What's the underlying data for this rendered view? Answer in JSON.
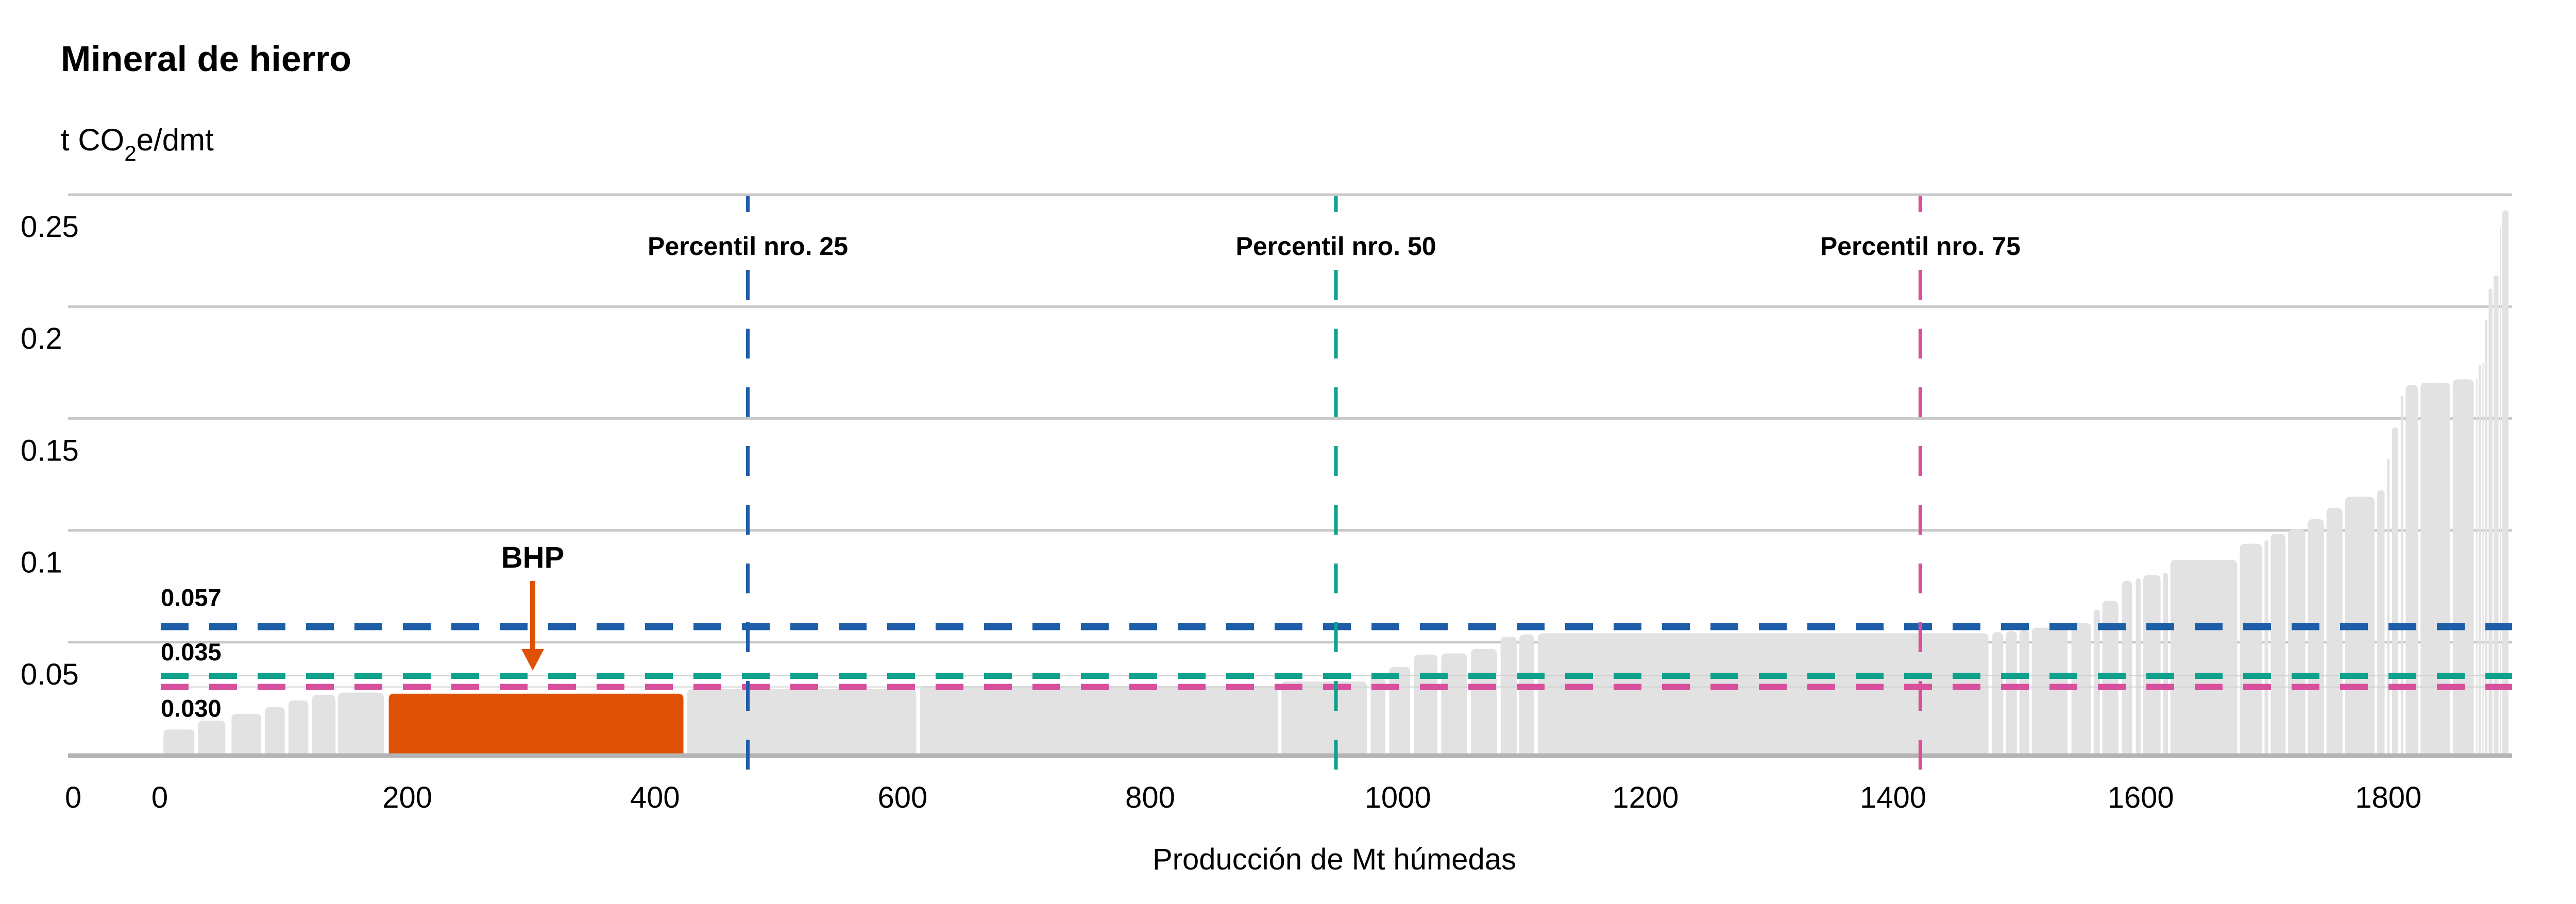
{
  "header": {
    "title": "Mineral de hierro",
    "y_unit_pre": "t CO",
    "y_unit_sub": "2",
    "y_unit_post": "e/dmt"
  },
  "colors": {
    "title_orange": "#e8650f",
    "highlight_orange": "#df5206",
    "bar_gray": "#e2e2e2",
    "gridline_gray": "#c8c8c8",
    "axis_gray": "#b4b4b4",
    "percentile25_blue": "#1e5ea8",
    "percentile50_teal": "#0ea18c",
    "percentile75_pink": "#d84f9d"
  },
  "chart_data": {
    "type": "bar",
    "title": "Mineral de hierro",
    "ylabel": "t CO2e/dmt",
    "xlabel": "Producción de Mt húmedas",
    "xlim": [
      0,
      1900
    ],
    "ylim": [
      0,
      0.25
    ],
    "grid": "horizontal",
    "legend": "none",
    "x_ticks": [
      0,
      200,
      400,
      600,
      800,
      1000,
      1200,
      1400,
      1600,
      1800
    ],
    "y_ticks": [
      {
        "value": 0,
        "label": "0"
      },
      {
        "value": 0.05,
        "label": "0.05"
      },
      {
        "value": 0.1,
        "label": "0.1"
      },
      {
        "value": 0.15,
        "label": "0.15"
      },
      {
        "value": 0.2,
        "label": "0.2"
      },
      {
        "value": 0.25,
        "label": "0.25"
      }
    ],
    "segments_format": [
      "x0_Mt",
      "x1_Mt",
      "t_CO2e_per_dmt"
    ],
    "segments": [
      [
        3,
        28,
        0.011
      ],
      [
        31,
        53,
        0.015
      ],
      [
        58,
        82,
        0.018
      ],
      [
        85,
        101,
        0.021
      ],
      [
        104,
        120,
        0.024
      ],
      [
        123,
        142,
        0.0265
      ],
      [
        144,
        181,
        0.0275
      ],
      [
        426,
        611,
        0.029
      ],
      [
        614,
        903,
        0.0305
      ],
      [
        906,
        975,
        0.0325
      ],
      [
        978,
        990,
        0.035
      ],
      [
        993,
        1010,
        0.039
      ],
      [
        1013,
        1032,
        0.0445
      ],
      [
        1035,
        1056,
        0.045
      ],
      [
        1059,
        1080,
        0.047
      ],
      [
        1083,
        1096,
        0.0525
      ],
      [
        1098,
        1110,
        0.0535
      ],
      [
        1113,
        1477,
        0.054
      ],
      [
        1480,
        1489,
        0.0545
      ],
      [
        1491,
        1500,
        0.055
      ],
      [
        1502,
        1510,
        0.0555
      ],
      [
        1512,
        1541,
        0.0565
      ],
      [
        1544,
        1560,
        0.0585
      ],
      [
        1562,
        1567,
        0.0645
      ],
      [
        1569,
        1582,
        0.0685
      ],
      [
        1585,
        1593,
        0.0775
      ],
      [
        1596,
        1600,
        0.0785
      ],
      [
        1602,
        1616,
        0.08
      ],
      [
        1618,
        1622,
        0.081
      ],
      [
        1624,
        1678,
        0.0868
      ],
      [
        1680,
        1698,
        0.094
      ],
      [
        1700,
        1703,
        0.0955
      ],
      [
        1705,
        1717,
        0.0985
      ],
      [
        1719,
        1733,
        0.1005
      ],
      [
        1735,
        1748,
        0.105
      ],
      [
        1750,
        1763,
        0.11
      ],
      [
        1765,
        1789,
        0.115
      ],
      [
        1791,
        1797,
        0.118
      ],
      [
        1799,
        1801,
        0.132
      ],
      [
        1803,
        1808,
        0.146
      ],
      [
        1810,
        1812,
        0.16
      ],
      [
        1814,
        1824,
        0.165
      ],
      [
        1826,
        1850,
        0.166
      ],
      [
        1852,
        1869,
        0.1675
      ],
      [
        1871,
        1872,
        0.168
      ],
      [
        1873,
        1875,
        0.174
      ],
      [
        1876,
        1877,
        0.175
      ],
      [
        1878,
        1880,
        0.194
      ],
      [
        1881,
        1884,
        0.208
      ],
      [
        1885,
        1889,
        0.214
      ],
      [
        1890,
        1891,
        0.235
      ],
      [
        1892,
        1897,
        0.243
      ]
    ],
    "highlight": {
      "label": "BHP",
      "x0": 185,
      "x1": 423,
      "value": 0.027,
      "color": "#df5206"
    },
    "percentile_lines": [
      {
        "label": "Percentil nro. 25",
        "x": 475,
        "color": "#1e5ea8"
      },
      {
        "label": "Percentil nro. 50",
        "x": 950,
        "color": "#0ea18c"
      },
      {
        "label": "Percentil nro. 75",
        "x": 1422,
        "color": "#d84f9d"
      }
    ],
    "reference_lines": [
      {
        "label": "0.057",
        "value": 0.057,
        "color": "#1e5ea8",
        "underlay": false
      },
      {
        "label": "0.035",
        "value": 0.035,
        "color": "#0ea18c",
        "underlay": true
      },
      {
        "label": "0.030",
        "value": 0.03,
        "color": "#d84f9d",
        "underlay": true
      }
    ]
  }
}
